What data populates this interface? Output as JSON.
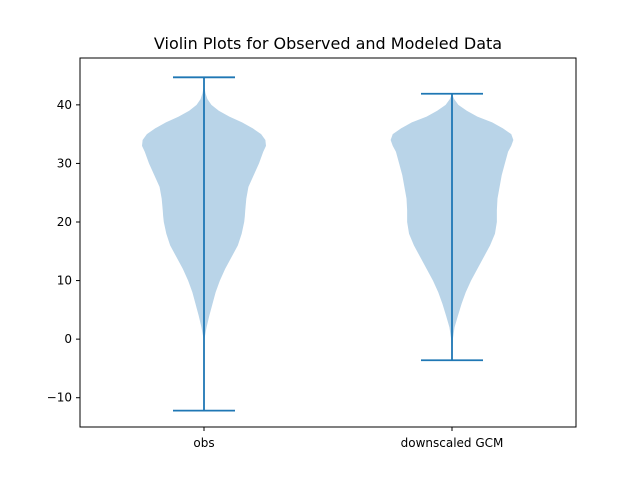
{
  "chart_data": {
    "type": "violin",
    "title": "Violin Plots for Observed and Modeled Data",
    "xlabel": "",
    "ylabel": "",
    "ylim": [
      -15,
      48
    ],
    "xlim": [
      0.5,
      2.5
    ],
    "yticks": [
      -10,
      0,
      10,
      20,
      30,
      40
    ],
    "categories": [
      "obs",
      "downscaled GCM"
    ],
    "grid": false,
    "colors": {
      "body": "#b9d4e8",
      "line": "#1f77b4"
    },
    "series": [
      {
        "category": "obs",
        "min": -12.2,
        "max": 44.7,
        "density": [
          [
            -12.2,
            0.0
          ],
          [
            -8,
            0.0
          ],
          [
            -4,
            0.0
          ],
          [
            0,
            0.002
          ],
          [
            2,
            0.012
          ],
          [
            4,
            0.025
          ],
          [
            6,
            0.04
          ],
          [
            8,
            0.055
          ],
          [
            10,
            0.075
          ],
          [
            12,
            0.1
          ],
          [
            14,
            0.13
          ],
          [
            16,
            0.16
          ],
          [
            18,
            0.178
          ],
          [
            20,
            0.19
          ],
          [
            21,
            0.193
          ],
          [
            22,
            0.195
          ],
          [
            24,
            0.2
          ],
          [
            26,
            0.21
          ],
          [
            28,
            0.235
          ],
          [
            30,
            0.26
          ],
          [
            32,
            0.28
          ],
          [
            33,
            0.293
          ],
          [
            34,
            0.29
          ],
          [
            35,
            0.27
          ],
          [
            36,
            0.23
          ],
          [
            37,
            0.18
          ],
          [
            38,
            0.12
          ],
          [
            39,
            0.07
          ],
          [
            40,
            0.035
          ],
          [
            41,
            0.016
          ],
          [
            42,
            0.007
          ],
          [
            43,
            0.002
          ],
          [
            44.7,
            0.0
          ]
        ]
      },
      {
        "category": "downscaled GCM",
        "min": -3.6,
        "max": 41.9,
        "density": [
          [
            -3.6,
            0.0
          ],
          [
            0,
            0.004
          ],
          [
            2,
            0.012
          ],
          [
            4,
            0.028
          ],
          [
            6,
            0.045
          ],
          [
            8,
            0.065
          ],
          [
            10,
            0.09
          ],
          [
            12,
            0.12
          ],
          [
            14,
            0.15
          ],
          [
            16,
            0.18
          ],
          [
            18,
            0.203
          ],
          [
            20,
            0.212
          ],
          [
            22,
            0.212
          ],
          [
            24,
            0.215
          ],
          [
            26,
            0.225
          ],
          [
            28,
            0.235
          ],
          [
            30,
            0.25
          ],
          [
            32,
            0.265
          ],
          [
            33,
            0.28
          ],
          [
            34,
            0.29
          ],
          [
            35,
            0.28
          ],
          [
            36,
            0.24
          ],
          [
            37,
            0.19
          ],
          [
            38,
            0.12
          ],
          [
            39,
            0.07
          ],
          [
            40,
            0.03
          ],
          [
            41,
            0.01
          ],
          [
            41.9,
            0.0
          ]
        ]
      }
    ]
  }
}
